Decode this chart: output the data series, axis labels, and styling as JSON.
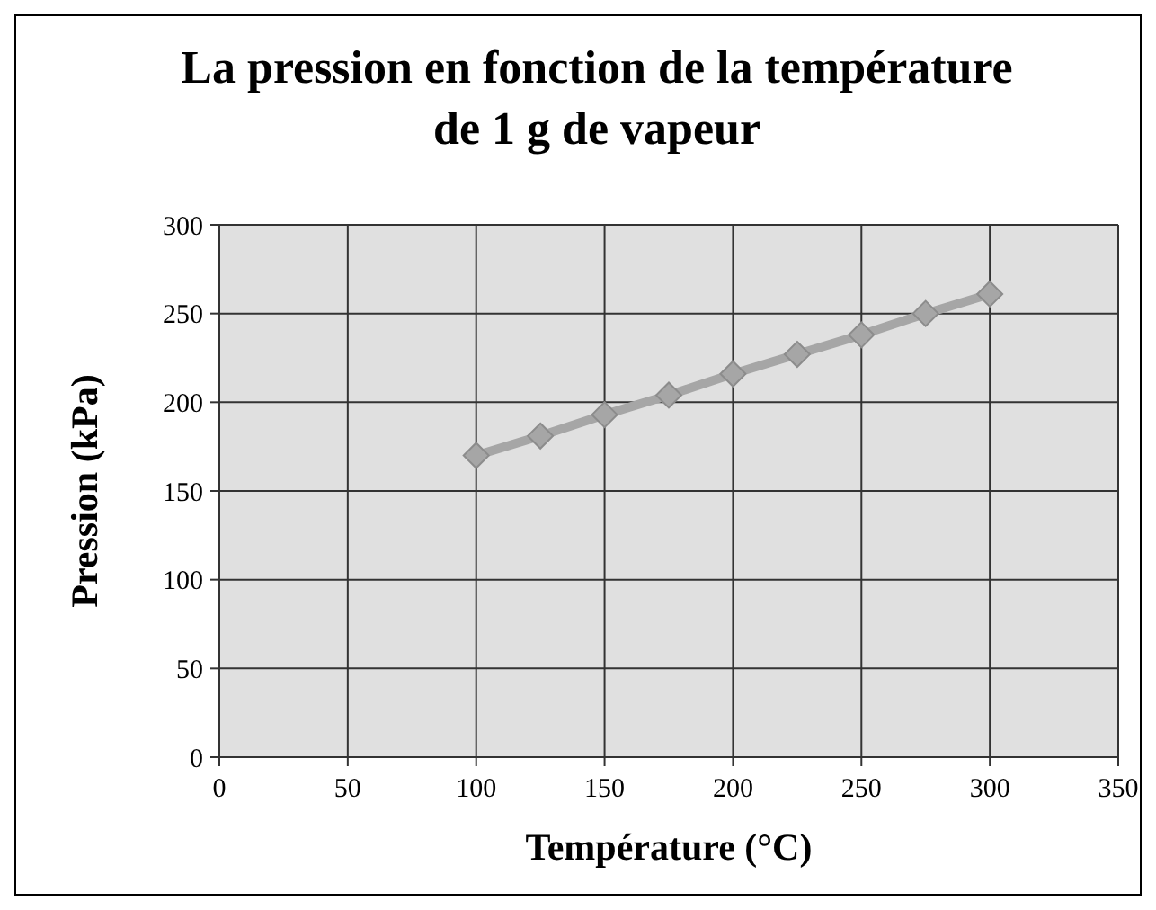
{
  "chart_data": {
    "type": "line",
    "title": "La pression en fonction de la température de 1 g de vapeur",
    "xlabel": "Température (°C)",
    "ylabel": "Pression (kPa)",
    "x": [
      100,
      125,
      150,
      175,
      200,
      225,
      250,
      275,
      300
    ],
    "series": [
      {
        "color": "#a6a6a6",
        "values": [
          170,
          181,
          193,
          204,
          216,
          227,
          238,
          250,
          261
        ]
      }
    ],
    "xlim": [
      0,
      350
    ],
    "xticks": [
      0,
      50,
      100,
      150,
      200,
      250,
      300,
      350
    ],
    "ylim": [
      0,
      300
    ],
    "yticks": [
      0,
      50,
      100,
      150,
      200,
      250,
      300
    ],
    "grid": true,
    "marker": "diamond",
    "line_style": "solid"
  }
}
